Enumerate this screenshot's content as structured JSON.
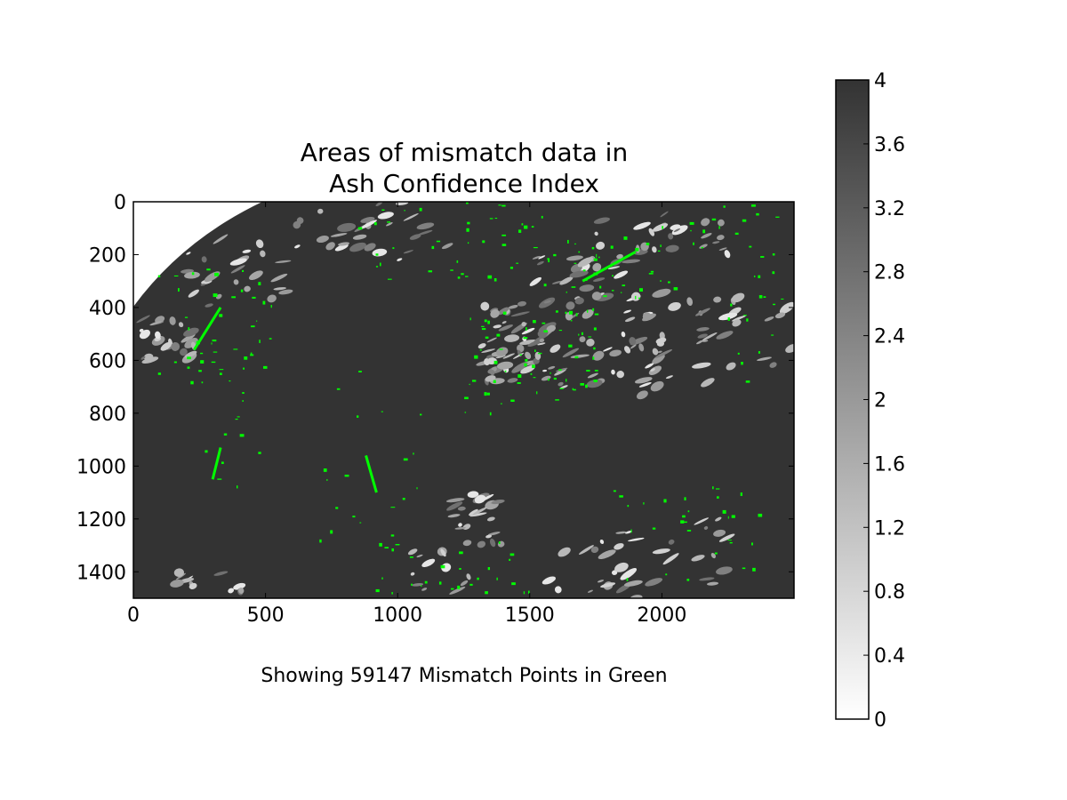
{
  "chart_data": {
    "type": "heatmap",
    "title": "Areas of mismatch data in\nAsh Confidence Index",
    "xlabel": "Showing 59147 Mismatch Points in Green",
    "ylabel": "",
    "xlim": [
      0,
      2500
    ],
    "ylim": [
      1500,
      0
    ],
    "xticks": [
      0,
      500,
      1000,
      1500,
      2000
    ],
    "yticks": [
      0,
      200,
      400,
      600,
      800,
      1000,
      1200,
      1400
    ],
    "colorbar": {
      "ticks": [
        0,
        0.4,
        0.8,
        1.2,
        1.6,
        2,
        2.4,
        2.8,
        3.2,
        3.6,
        4
      ],
      "tick_labels": [
        "0",
        "0.4",
        "0.8",
        "1.2",
        "1.6",
        "2",
        "2.4",
        "2.8",
        "3.2",
        "3.6",
        "4"
      ],
      "range": [
        0,
        4
      ],
      "colormap": "grayscale (0 = white, 4 = dark gray)"
    },
    "mismatch_points": 59147,
    "background_value": 4,
    "colors": {
      "mismatch": "#00ff00",
      "field_high": "#333333",
      "field_low": "#ffffff",
      "axes": "#000000"
    },
    "grid": false,
    "legend": "none"
  }
}
